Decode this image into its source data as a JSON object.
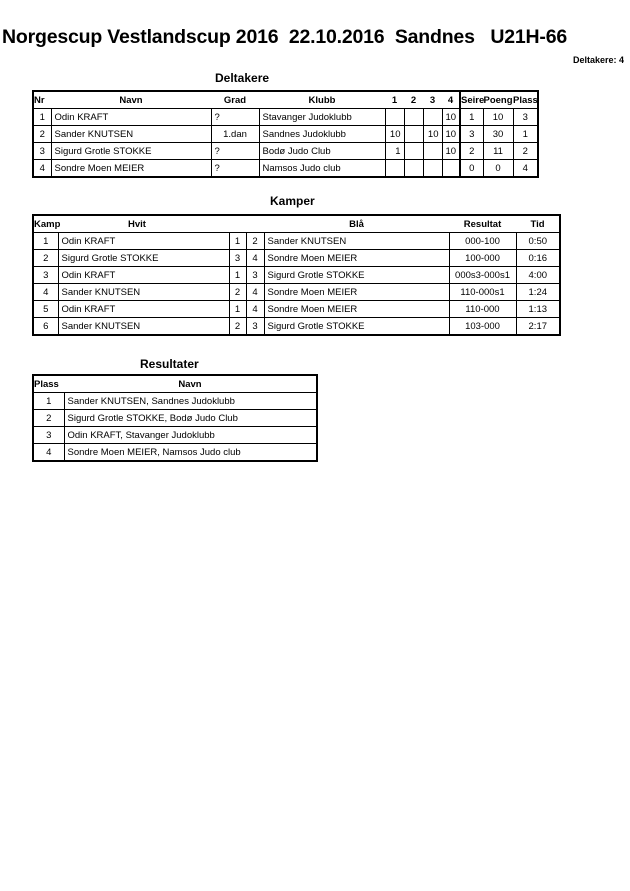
{
  "title": "Norgescup Vestlandscup 2016  22.10.2016  Sandnes   U21H-66",
  "participant_count": "Deltakere: 4",
  "deltakere": {
    "heading": "Deltakere",
    "headers": [
      "Nr",
      "Navn",
      "Grad",
      "Klubb",
      "1",
      "2",
      "3",
      "4",
      "Seire",
      "Poeng",
      "Plass"
    ],
    "rows": [
      [
        "1",
        "Odin KRAFT",
        "?",
        "Stavanger Judoklubb",
        "",
        "",
        "",
        "10",
        "1",
        "10",
        "3"
      ],
      [
        "2",
        "Sander KNUTSEN",
        "1.dan",
        "Sandnes Judoklubb",
        "10",
        "",
        "10",
        "10",
        "3",
        "30",
        "1"
      ],
      [
        "3",
        "Sigurd Grotle STOKKE",
        "?",
        "Bodø Judo Club",
        "1",
        "",
        "",
        "10",
        "2",
        "11",
        "2"
      ],
      [
        "4",
        "Sondre Moen MEIER",
        "?",
        "Namsos Judo club",
        "",
        "",
        "",
        "",
        "0",
        "0",
        "4"
      ]
    ]
  },
  "kamper": {
    "heading": "Kamper",
    "headers": [
      "Kamp",
      "Hvit",
      "Blå",
      "Resultat",
      "Tid"
    ],
    "rows": [
      [
        "1",
        "Odin KRAFT",
        "1",
        "2",
        "Sander KNUTSEN",
        "000-100",
        "0:50"
      ],
      [
        "2",
        "Sigurd Grotle STOKKE",
        "3",
        "4",
        "Sondre Moen MEIER",
        "100-000",
        "0:16"
      ],
      [
        "3",
        "Odin KRAFT",
        "1",
        "3",
        "Sigurd Grotle STOKKE",
        "000s3-000s1",
        "4:00"
      ],
      [
        "4",
        "Sander KNUTSEN",
        "2",
        "4",
        "Sondre Moen MEIER",
        "110-000s1",
        "1:24"
      ],
      [
        "5",
        "Odin KRAFT",
        "1",
        "4",
        "Sondre Moen MEIER",
        "110-000",
        "1:13"
      ],
      [
        "6",
        "Sander KNUTSEN",
        "2",
        "3",
        "Sigurd Grotle STOKKE",
        "103-000",
        "2:17"
      ]
    ]
  },
  "resultater": {
    "heading": "Resultater",
    "headers": [
      "Plass",
      "Navn"
    ],
    "rows": [
      [
        "1",
        "Sander KNUTSEN, Sandnes Judoklubb"
      ],
      [
        "2",
        "Sigurd Grotle STOKKE, Bodø Judo Club"
      ],
      [
        "3",
        "Odin KRAFT, Stavanger Judoklubb"
      ],
      [
        "4",
        "Sondre Moen MEIER, Namsos Judo club"
      ]
    ]
  }
}
